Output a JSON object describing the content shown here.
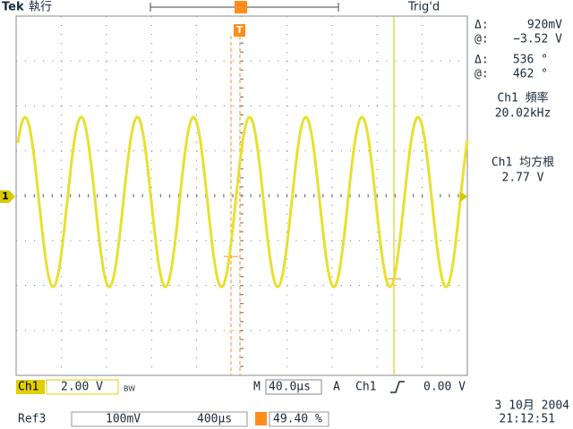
{
  "header": {
    "brand": "Tek",
    "status": "執行",
    "trigger_status": "Trig'd"
  },
  "cursor_readout": {
    "delta_label": "Δ:",
    "delta_value": "920mV",
    "at_label": "@:",
    "at_value": "−3.52 V",
    "phase_delta_label": "Δ:",
    "phase_delta": "536 °",
    "phase_at_label": "@:",
    "phase_at": "462 °"
  },
  "measurements": [
    {
      "label": "Ch1 頻率",
      "value": "20.02kHz"
    },
    {
      "label": "Ch1 均方根",
      "value": "2.77 V"
    }
  ],
  "status_bar": {
    "channel": "Ch1",
    "volts_div": "2.00 V",
    "bw": "BW",
    "timebase_label": "M",
    "timebase": "40.0µs",
    "trigger_mode": "A",
    "trigger_source": "Ch1",
    "trigger_level": "0.00 V"
  },
  "ref_bar": {
    "ref": "Ref3",
    "ref_volts": "100mV",
    "ref_time": "400µs",
    "trigger_position": "49.40 %"
  },
  "timestamp": {
    "date": "3 10月 2004",
    "time": "21:12:51"
  },
  "markers": {
    "trigger": "T",
    "channel": "1"
  }
}
